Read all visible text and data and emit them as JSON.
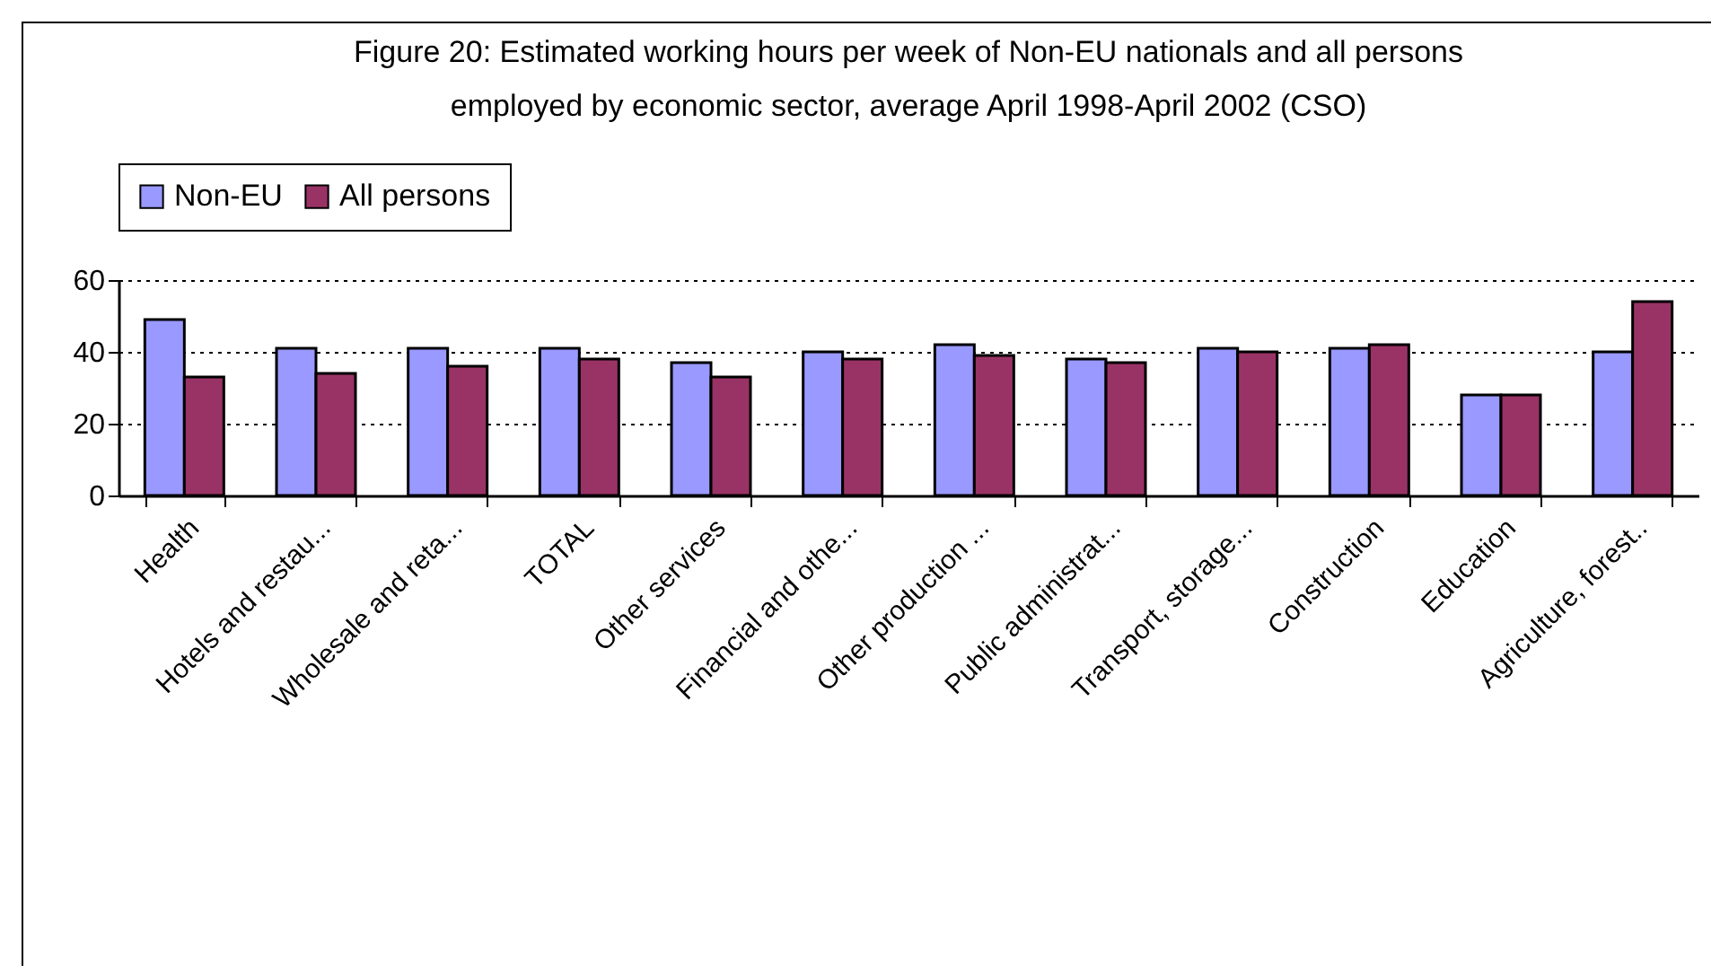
{
  "chart_data": {
    "type": "bar",
    "title": [
      "Figure 20: Estimated working hours per week of Non-EU nationals and all persons",
      "employed by economic sector, average April 1998-April 2002 (CSO)"
    ],
    "categories": [
      "Health",
      "Hotels and restau...",
      "Wholesale and reta...",
      "TOTAL",
      "Other services",
      "Financial and othe...",
      "Other production ...",
      "Public administrat...",
      "Transport, storage...",
      "Construction",
      "Education",
      "Agriculture, forest.."
    ],
    "series": [
      {
        "name": "Non-EU",
        "color": "#9999ff",
        "values": [
          49,
          41,
          41,
          41,
          37,
          40,
          42,
          38,
          41,
          41,
          28,
          40
        ]
      },
      {
        "name": "All persons",
        "color": "#993366",
        "values": [
          33,
          34,
          36,
          38,
          33,
          38,
          39,
          37,
          40,
          42,
          28,
          54
        ]
      }
    ],
    "ylim": [
      0,
      60
    ],
    "yticks": [
      0,
      20,
      40,
      60
    ],
    "grid": "y",
    "legend": "top"
  }
}
